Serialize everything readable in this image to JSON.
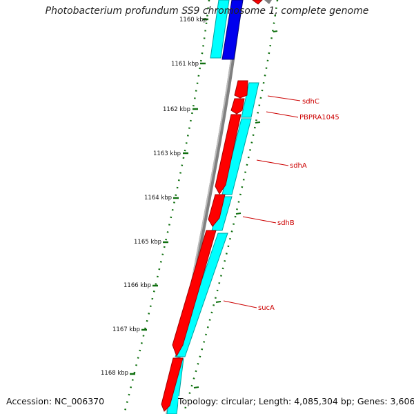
{
  "title": "Photobacterium profundum SS9 chromosome 1, complete genome",
  "accession_text": "Accession: NC_006370",
  "summary_text": "Topology: circular; Length: 4,085,304 bp; Genes: 3,606",
  "kbp_labels": [
    {
      "text": "1160 kbp",
      "kbp": 1160
    },
    {
      "text": "1161 kbp",
      "kbp": 1161
    },
    {
      "text": "1162 kbp",
      "kbp": 1162
    },
    {
      "text": "1163 kbp",
      "kbp": 1163
    },
    {
      "text": "1164 kbp",
      "kbp": 1164
    },
    {
      "text": "1165 kbp",
      "kbp": 1165
    },
    {
      "text": "1166 kbp",
      "kbp": 1166
    },
    {
      "text": "1167 kbp",
      "kbp": 1167
    },
    {
      "text": "1168 kbp",
      "kbp": 1168
    }
  ],
  "gene_labels": [
    "sdhC",
    "PBPRA1045",
    "sdhA",
    "sdhB",
    "sucA"
  ],
  "colors": {
    "backbone": "#808080",
    "gene_forward": "#ff0000",
    "cds_light": "#00ffff",
    "gene_reverse": "#0000ee",
    "tick": "#107010",
    "gene_label": "#cc0000"
  }
}
